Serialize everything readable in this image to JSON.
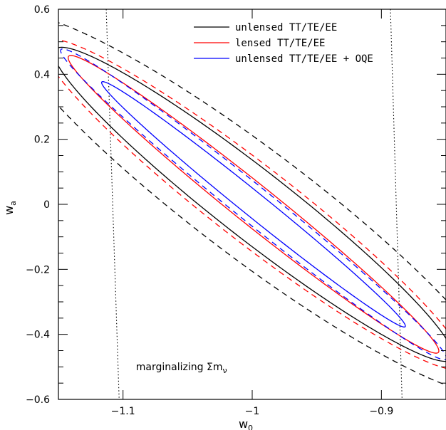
{
  "chart_data": {
    "type": "line",
    "xlabel": "w",
    "xlabel_sub": "0",
    "ylabel": "w",
    "ylabel_sub": "a",
    "xlim": [
      -1.15,
      -0.85
    ],
    "ylim": [
      -0.6,
      0.6
    ],
    "x_ticks": [
      -1.1,
      -1.0,
      -0.9
    ],
    "x_tick_labels": [
      "−1.1",
      "−1",
      "−0.9"
    ],
    "y_ticks": [
      -0.6,
      -0.4,
      -0.2,
      0,
      0.2,
      0.4,
      0.6
    ],
    "y_tick_labels": [
      "−0.6",
      "−0.4",
      "−0.2",
      "0",
      "0.2",
      "0.4",
      "0.6"
    ],
    "grid": false,
    "legend_position": "top-right",
    "annotation": {
      "text": "marginalizing Σm",
      "sub": "ν",
      "x": -1.09,
      "y": -0.51
    },
    "colors": {
      "black": "#000000",
      "red": "#ff0000",
      "blue": "#0000ff"
    },
    "series": [
      {
        "name": "unlensed TT/TE/EE",
        "color": "#000000",
        "style": "solid",
        "legend": true,
        "ellipse": {
          "cx": -0.999,
          "cy": 0.0,
          "angle_deg": -72.8,
          "a": 0.5055,
          "b": 0.0408
        }
      },
      {
        "name": "",
        "color": "#000000",
        "style": "dashed",
        "legend": false,
        "ellipse": {
          "cx": -0.999,
          "cy": 0.0,
          "angle_deg": -72.8,
          "a": 0.6108,
          "b": 0.0654
        }
      },
      {
        "name": "lensed TT/TE/EE",
        "color": "#ff0000",
        "style": "solid",
        "legend": true,
        "ellipse": {
          "cx": -0.999,
          "cy": 0.0,
          "angle_deg": -72.8,
          "a": 0.4792,
          "b": 0.0235
        }
      },
      {
        "name": "",
        "color": "#ff0000",
        "style": "dashed",
        "legend": false,
        "ellipse": {
          "cx": -0.999,
          "cy": 0.0,
          "angle_deg": -72.8,
          "a": 0.5319,
          "b": 0.0456
        }
      },
      {
        "name": "unlensed TT/TE/EE + OQE",
        "color": "#0000ff",
        "style": "solid",
        "legend": true,
        "ellipse": {
          "cx": -0.999,
          "cy": 0.0,
          "angle_deg": -72.8,
          "a": 0.395,
          "b": 0.0141
        }
      },
      {
        "name": "",
        "color": "#0000ff",
        "style": "dashed",
        "legend": false,
        "ellipse": {
          "cx": -0.999,
          "cy": 0.0,
          "angle_deg": -72.8,
          "a": 0.5003,
          "b": 0.0211
        }
      }
    ],
    "prior_lines": [
      {
        "style": "dotted",
        "color": "#000000",
        "x": [
          -1.113,
          -1.103
        ],
        "y": [
          0.6,
          -0.6
        ]
      },
      {
        "style": "dotted",
        "color": "#000000",
        "x": [
          -0.893,
          -0.884
        ],
        "y": [
          0.6,
          -0.6
        ]
      }
    ]
  }
}
